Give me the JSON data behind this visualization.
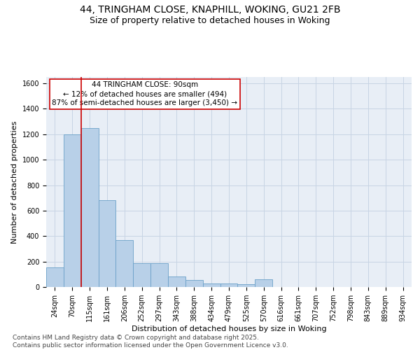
{
  "title_line1": "44, TRINGHAM CLOSE, KNAPHILL, WOKING, GU21 2FB",
  "title_line2": "Size of property relative to detached houses in Woking",
  "xlabel": "Distribution of detached houses by size in Woking",
  "ylabel": "Number of detached properties",
  "categories": [
    "24sqm",
    "70sqm",
    "115sqm",
    "161sqm",
    "206sqm",
    "252sqm",
    "297sqm",
    "343sqm",
    "388sqm",
    "434sqm",
    "479sqm",
    "525sqm",
    "570sqm",
    "616sqm",
    "661sqm",
    "707sqm",
    "752sqm",
    "798sqm",
    "843sqm",
    "889sqm",
    "934sqm"
  ],
  "values": [
    155,
    1200,
    1250,
    680,
    370,
    185,
    185,
    80,
    55,
    30,
    25,
    20,
    60,
    0,
    0,
    0,
    0,
    0,
    0,
    0,
    0
  ],
  "bar_color": "#b8d0e8",
  "bar_edge_color": "#6aa0c8",
  "grid_color": "#c8d4e4",
  "background_color": "#e8eef6",
  "vline_color": "#cc0000",
  "annotation_text": "44 TRINGHAM CLOSE: 90sqm\n← 12% of detached houses are smaller (494)\n87% of semi-detached houses are larger (3,450) →",
  "annotation_box_color": "#ffffff",
  "annotation_box_edge": "#cc0000",
  "ylim": [
    0,
    1650
  ],
  "yticks": [
    0,
    200,
    400,
    600,
    800,
    1000,
    1200,
    1400,
    1600
  ],
  "footer_text": "Contains HM Land Registry data © Crown copyright and database right 2025.\nContains public sector information licensed under the Open Government Licence v3.0.",
  "title_fontsize": 10,
  "subtitle_fontsize": 9,
  "axis_label_fontsize": 8,
  "tick_fontsize": 7,
  "annotation_fontsize": 7.5,
  "footer_fontsize": 6.5
}
